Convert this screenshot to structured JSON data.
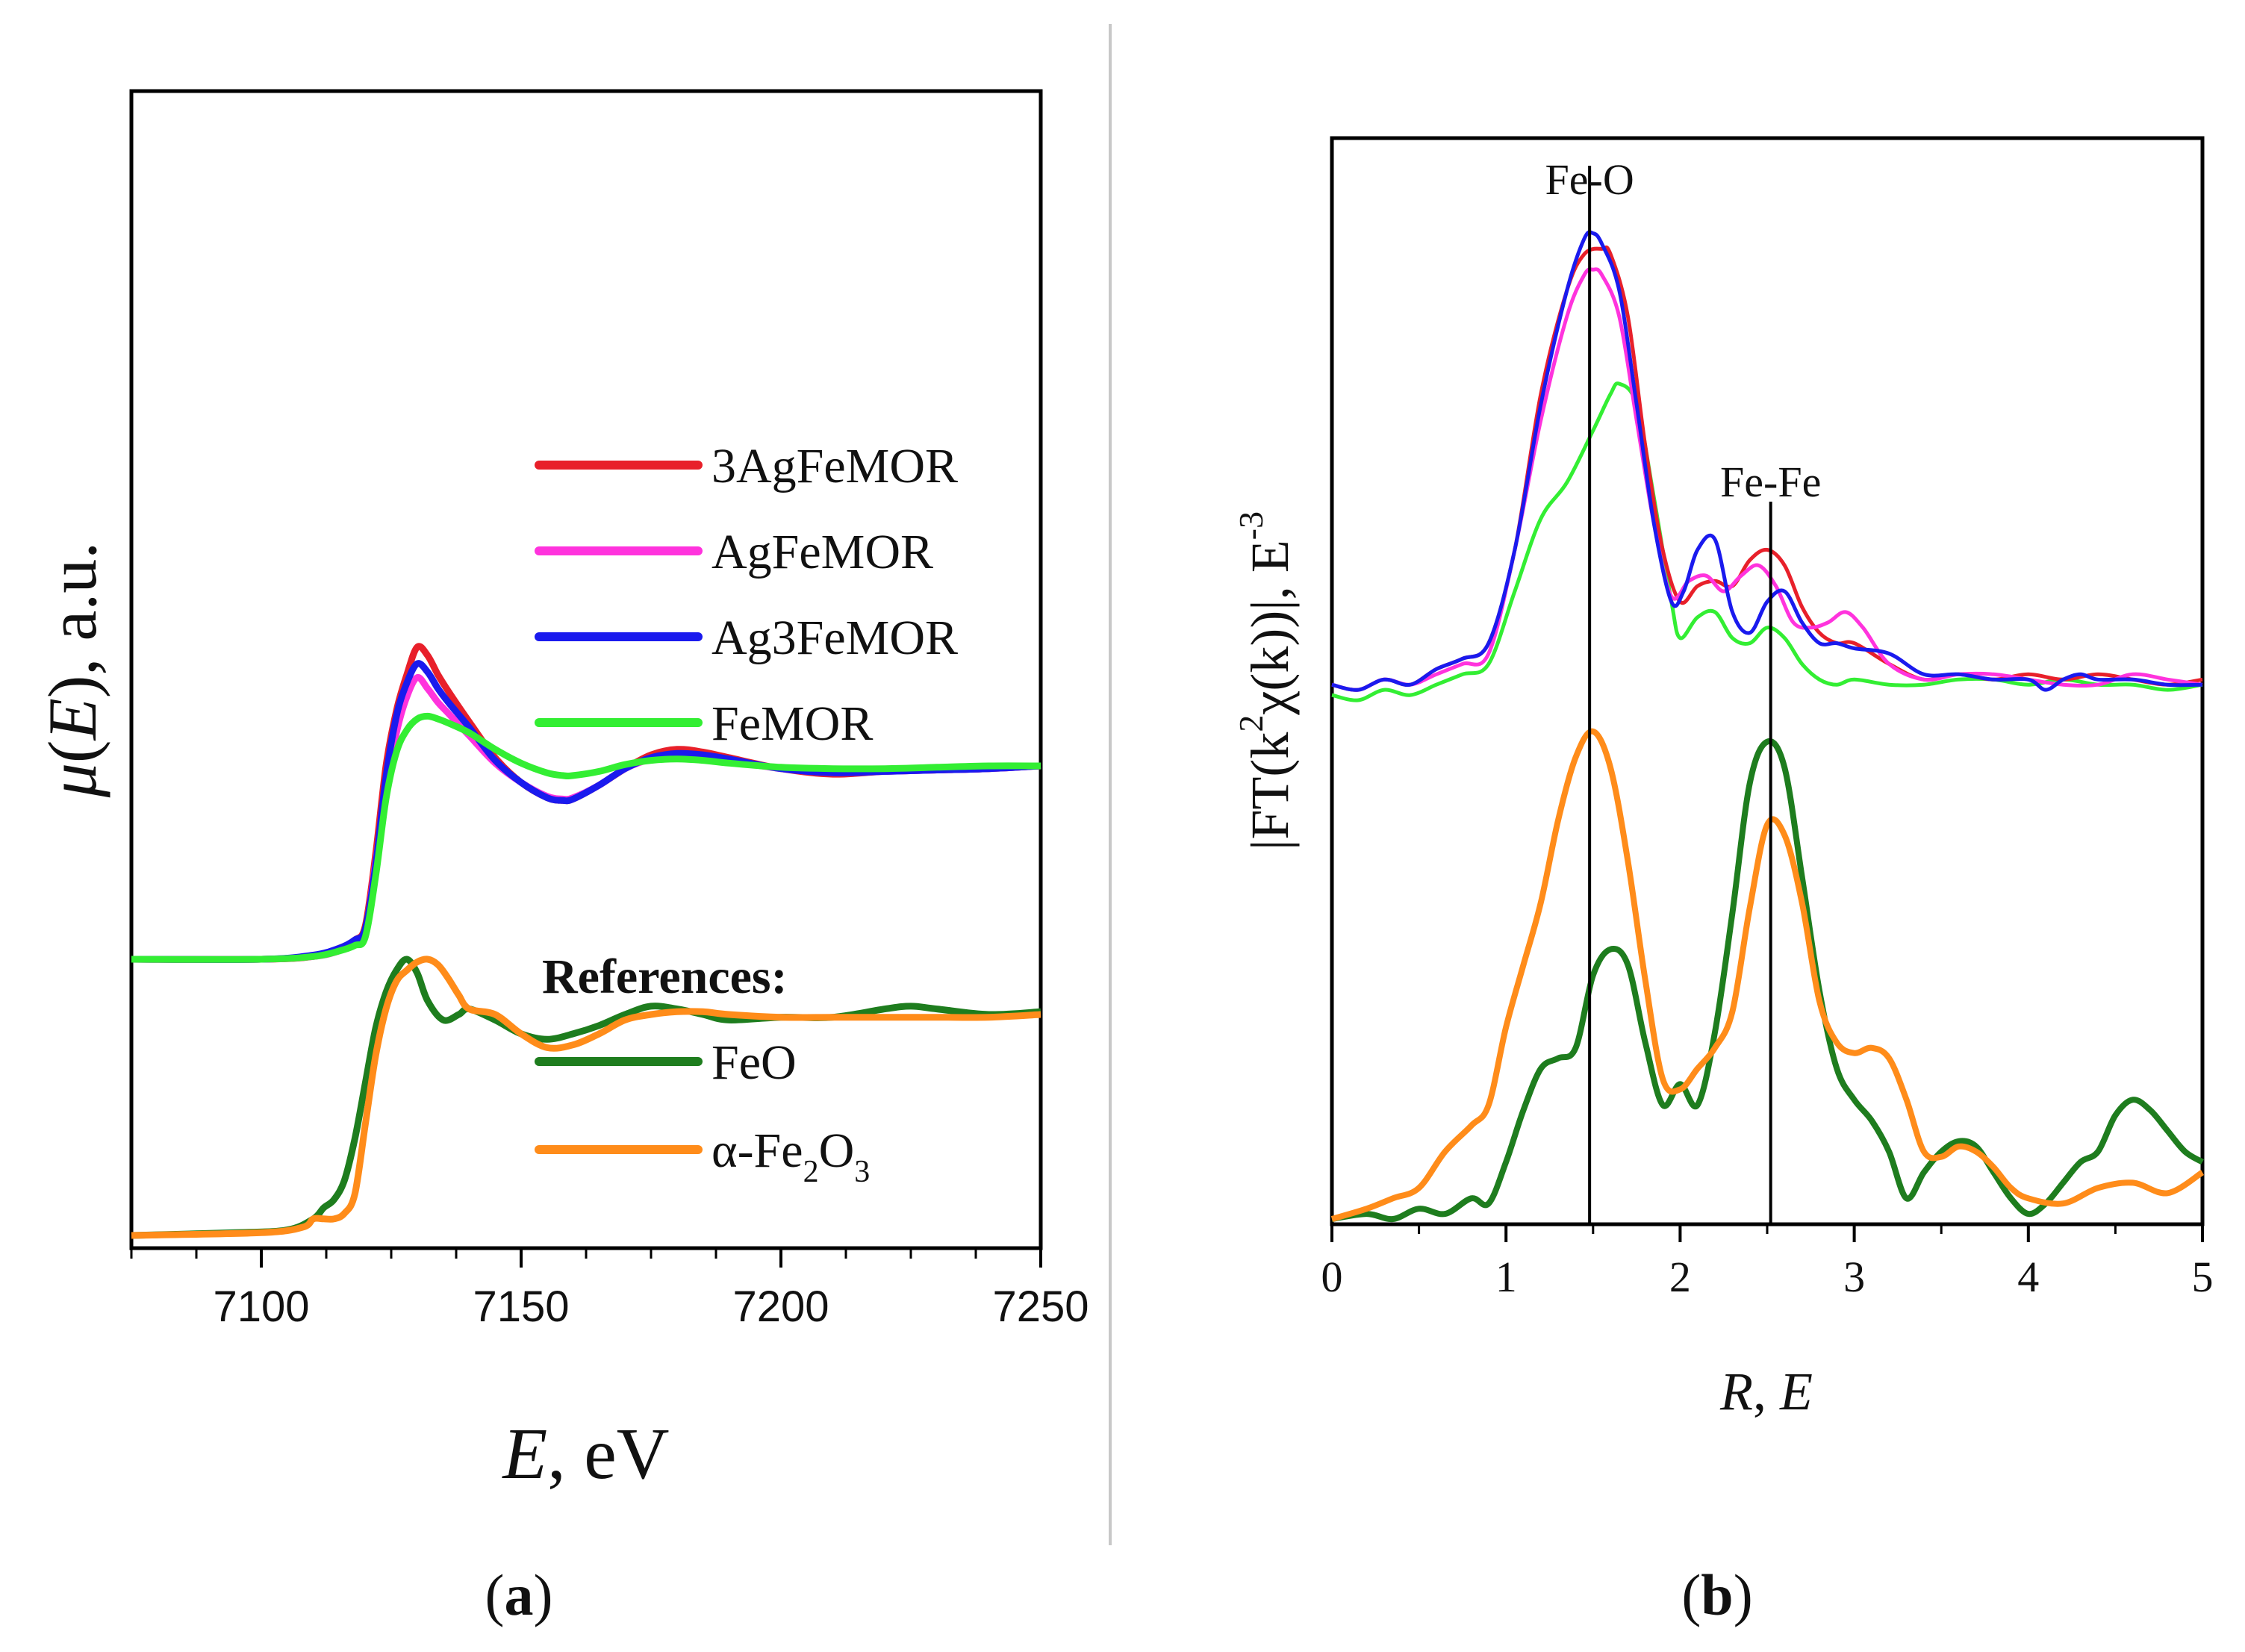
{
  "chart_data": [
    {
      "type": "line",
      "panel_label": "(a)",
      "panel_letter": "a",
      "ylabel_symbol": "μ",
      "ylabel_arg": "E",
      "ylabel": "μ(E), a.u.",
      "ylabel_suffix": ", a.u.",
      "xlabel_var": "E",
      "xlabel_unit": ", eV",
      "xlabel": "E, eV",
      "xlim": [
        7075,
        7250
      ],
      "ylim": [
        0,
        2.15
      ],
      "xticks": [
        7100,
        7150,
        7200,
        7250
      ],
      "legend_heading": "References:",
      "series": [
        {
          "name": "3AgFeMOR",
          "color": "#e8202a",
          "group": "samples",
          "x": [
            7075,
            7100,
            7110,
            7115,
            7118,
            7120,
            7122,
            7124,
            7126,
            7128,
            7130,
            7132,
            7134,
            7136,
            7140,
            7145,
            7150,
            7155,
            7158,
            7160,
            7165,
            7170,
            7175,
            7180,
            7185,
            7190,
            7200,
            7210,
            7220,
            7230,
            7240,
            7250
          ],
          "y": [
            1.0,
            1.0,
            1.01,
            1.04,
            1.07,
            1.12,
            1.38,
            1.7,
            1.9,
            2.03,
            2.13,
            2.1,
            2.03,
            1.97,
            1.86,
            1.73,
            1.64,
            1.585,
            1.575,
            1.58,
            1.63,
            1.69,
            1.74,
            1.76,
            1.75,
            1.73,
            1.69,
            1.67,
            1.68,
            1.685,
            1.69,
            1.7
          ]
        },
        {
          "name": "AgFeMOR",
          "color": "#ff33dd",
          "group": "samples",
          "x": [
            7075,
            7100,
            7110,
            7115,
            7118,
            7120,
            7122,
            7124,
            7126,
            7128,
            7130,
            7132,
            7134,
            7136,
            7140,
            7145,
            7150,
            7155,
            7158,
            7160,
            7165,
            7170,
            7175,
            7180,
            7185,
            7190,
            7200,
            7210,
            7220,
            7230,
            7240,
            7250
          ],
          "y": [
            1.0,
            1.0,
            1.01,
            1.03,
            1.06,
            1.1,
            1.35,
            1.62,
            1.82,
            1.95,
            2.02,
            1.98,
            1.93,
            1.89,
            1.81,
            1.71,
            1.64,
            1.59,
            1.58,
            1.585,
            1.63,
            1.69,
            1.725,
            1.74,
            1.735,
            1.72,
            1.69,
            1.675,
            1.68,
            1.685,
            1.69,
            1.7
          ]
        },
        {
          "name": "Ag3FeMOR",
          "color": "#1a1aee",
          "group": "samples",
          "x": [
            7075,
            7100,
            7110,
            7115,
            7118,
            7120,
            7122,
            7124,
            7126,
            7128,
            7130,
            7132,
            7134,
            7136,
            7140,
            7145,
            7150,
            7155,
            7158,
            7160,
            7165,
            7170,
            7175,
            7180,
            7185,
            7190,
            7200,
            7210,
            7220,
            7230,
            7240,
            7250
          ],
          "y": [
            1.0,
            1.0,
            1.015,
            1.04,
            1.07,
            1.11,
            1.34,
            1.66,
            1.88,
            2.0,
            2.07,
            2.04,
            1.98,
            1.93,
            1.84,
            1.72,
            1.64,
            1.585,
            1.575,
            1.58,
            1.63,
            1.69,
            1.73,
            1.745,
            1.74,
            1.725,
            1.69,
            1.675,
            1.68,
            1.685,
            1.69,
            1.7
          ]
        },
        {
          "name": "FeMOR",
          "color": "#33ee33",
          "group": "samples",
          "x": [
            7075,
            7100,
            7110,
            7115,
            7118,
            7120,
            7122,
            7124,
            7126,
            7128,
            7130,
            7132,
            7134,
            7136,
            7140,
            7145,
            7150,
            7155,
            7158,
            7160,
            7165,
            7170,
            7175,
            7180,
            7185,
            7190,
            7200,
            7210,
            7220,
            7230,
            7240,
            7250
          ],
          "y": [
            1.0,
            1.0,
            1.01,
            1.03,
            1.05,
            1.08,
            1.3,
            1.58,
            1.75,
            1.83,
            1.87,
            1.88,
            1.87,
            1.855,
            1.82,
            1.76,
            1.71,
            1.675,
            1.665,
            1.665,
            1.68,
            1.705,
            1.72,
            1.725,
            1.72,
            1.71,
            1.695,
            1.69,
            1.69,
            1.695,
            1.7,
            1.7
          ]
        },
        {
          "name": "FeO",
          "color": "#1e7d1e",
          "group": "references",
          "x": [
            7075,
            7095,
            7105,
            7110,
            7112,
            7114,
            7116,
            7118,
            7120,
            7122,
            7124,
            7126,
            7128,
            7130,
            7132,
            7135,
            7138,
            7140,
            7145,
            7150,
            7155,
            7160,
            7165,
            7170,
            7175,
            7180,
            7185,
            7190,
            7200,
            7210,
            7220,
            7225,
            7230,
            7240,
            7250
          ],
          "y": [
            0.0,
            0.01,
            0.02,
            0.06,
            0.1,
            0.13,
            0.2,
            0.35,
            0.55,
            0.75,
            0.88,
            0.96,
            1.0,
            0.95,
            0.85,
            0.78,
            0.8,
            0.82,
            0.78,
            0.73,
            0.71,
            0.73,
            0.76,
            0.8,
            0.83,
            0.82,
            0.8,
            0.78,
            0.79,
            0.79,
            0.82,
            0.83,
            0.82,
            0.8,
            0.81
          ]
        },
        {
          "name": "α-Fe2O3",
          "color": "#ff8c1a",
          "group": "references",
          "x": [
            7075,
            7100,
            7108,
            7110,
            7112,
            7114,
            7116,
            7118,
            7120,
            7122,
            7124,
            7126,
            7128,
            7130,
            7132,
            7134,
            7136,
            7138,
            7140,
            7145,
            7150,
            7155,
            7160,
            7165,
            7170,
            7175,
            7180,
            7185,
            7190,
            7200,
            7210,
            7220,
            7230,
            7240,
            7250
          ],
          "y": [
            0.0,
            0.01,
            0.03,
            0.06,
            0.06,
            0.06,
            0.08,
            0.15,
            0.4,
            0.65,
            0.82,
            0.92,
            0.96,
            0.99,
            1.0,
            0.98,
            0.93,
            0.87,
            0.82,
            0.8,
            0.73,
            0.68,
            0.69,
            0.73,
            0.78,
            0.8,
            0.81,
            0.81,
            0.8,
            0.79,
            0.79,
            0.79,
            0.79,
            0.79,
            0.8
          ]
        }
      ],
      "legend": {
        "samples": [
          "3AgFeMOR",
          "AgFeMOR",
          "Ag3FeMOR",
          "FeMOR"
        ],
        "references": [
          "FeO",
          "α-Fe2O3"
        ]
      }
    },
    {
      "type": "line",
      "panel_label": "(b)",
      "panel_letter": "b",
      "ylabel": "|FT(k2χ(k))|, E-3",
      "xlabel_var1": "R",
      "xlabel_sep": ", ",
      "xlabel_var2": "E",
      "xlabel": "R, E",
      "xlim": [
        0,
        5
      ],
      "ylim": [
        0,
        2.0
      ],
      "xticks": [
        0,
        1,
        2,
        3,
        4,
        5
      ],
      "annotations": [
        {
          "text": "Fe-O",
          "x": 1.48
        },
        {
          "text": "Fe-Fe",
          "x": 2.52
        }
      ],
      "series": [
        {
          "name": "3AgFeMOR",
          "color": "#e8202a",
          "x": [
            0,
            0.15,
            0.3,
            0.45,
            0.6,
            0.75,
            0.9,
            1.05,
            1.2,
            1.35,
            1.45,
            1.55,
            1.6,
            1.7,
            1.8,
            1.9,
            2.0,
            2.1,
            2.2,
            2.3,
            2.4,
            2.5,
            2.6,
            2.7,
            2.8,
            2.9,
            3.0,
            3.2,
            3.4,
            3.6,
            3.8,
            4.0,
            4.2,
            4.4,
            4.6,
            4.8,
            5.0
          ],
          "y": [
            1.04,
            1.03,
            1.05,
            1.04,
            1.07,
            1.09,
            1.12,
            1.3,
            1.6,
            1.8,
            1.87,
            1.88,
            1.87,
            1.75,
            1.5,
            1.3,
            1.2,
            1.23,
            1.24,
            1.23,
            1.28,
            1.3,
            1.27,
            1.19,
            1.14,
            1.12,
            1.12,
            1.08,
            1.05,
            1.06,
            1.05,
            1.06,
            1.05,
            1.06,
            1.05,
            1.04,
            1.05
          ]
        },
        {
          "name": "AgFeMOR",
          "color": "#ff33dd",
          "x": [
            0,
            0.15,
            0.3,
            0.45,
            0.6,
            0.75,
            0.9,
            1.05,
            1.2,
            1.35,
            1.45,
            1.5,
            1.55,
            1.65,
            1.75,
            1.85,
            1.95,
            2.05,
            2.15,
            2.25,
            2.35,
            2.45,
            2.55,
            2.65,
            2.75,
            2.85,
            2.95,
            3.05,
            3.2,
            3.4,
            3.6,
            3.8,
            4.0,
            4.2,
            4.4,
            4.6,
            4.8,
            5.0
          ],
          "y": [
            1.04,
            1.03,
            1.05,
            1.04,
            1.06,
            1.08,
            1.1,
            1.3,
            1.55,
            1.75,
            1.83,
            1.84,
            1.83,
            1.75,
            1.55,
            1.35,
            1.21,
            1.24,
            1.25,
            1.22,
            1.25,
            1.27,
            1.23,
            1.16,
            1.15,
            1.16,
            1.18,
            1.15,
            1.08,
            1.05,
            1.06,
            1.06,
            1.05,
            1.04,
            1.04,
            1.06,
            1.05,
            1.04
          ]
        },
        {
          "name": "Ag3FeMOR",
          "color": "#1a1aee",
          "x": [
            0,
            0.15,
            0.3,
            0.45,
            0.6,
            0.75,
            0.9,
            1.05,
            1.2,
            1.35,
            1.45,
            1.5,
            1.55,
            1.65,
            1.75,
            1.85,
            1.95,
            2.02,
            2.1,
            2.2,
            2.3,
            2.4,
            2.5,
            2.6,
            2.7,
            2.8,
            2.9,
            3.0,
            3.2,
            3.4,
            3.6,
            3.8,
            4.0,
            4.1,
            4.2,
            4.3,
            4.4,
            4.6,
            4.8,
            5.0
          ],
          "y": [
            1.04,
            1.03,
            1.05,
            1.04,
            1.07,
            1.09,
            1.12,
            1.3,
            1.58,
            1.8,
            1.9,
            1.91,
            1.89,
            1.8,
            1.58,
            1.35,
            1.2,
            1.22,
            1.3,
            1.32,
            1.18,
            1.14,
            1.2,
            1.22,
            1.16,
            1.12,
            1.12,
            1.11,
            1.1,
            1.06,
            1.06,
            1.05,
            1.05,
            1.03,
            1.05,
            1.06,
            1.05,
            1.05,
            1.04,
            1.04
          ]
        },
        {
          "name": "FeMOR",
          "color": "#33ee33",
          "x": [
            0,
            0.15,
            0.3,
            0.45,
            0.6,
            0.75,
            0.9,
            1.05,
            1.2,
            1.35,
            1.5,
            1.6,
            1.65,
            1.75,
            1.85,
            1.95,
            2.0,
            2.1,
            2.2,
            2.3,
            2.4,
            2.5,
            2.6,
            2.7,
            2.8,
            2.9,
            3.0,
            3.2,
            3.4,
            3.6,
            3.8,
            4.0,
            4.2,
            4.4,
            4.6,
            4.8,
            5.0
          ],
          "y": [
            1.02,
            1.01,
            1.03,
            1.02,
            1.04,
            1.06,
            1.08,
            1.22,
            1.36,
            1.43,
            1.53,
            1.6,
            1.62,
            1.58,
            1.4,
            1.2,
            1.13,
            1.17,
            1.18,
            1.13,
            1.12,
            1.15,
            1.13,
            1.08,
            1.05,
            1.04,
            1.05,
            1.04,
            1.04,
            1.05,
            1.05,
            1.04,
            1.05,
            1.04,
            1.04,
            1.03,
            1.04
          ]
        },
        {
          "name": "FeO",
          "color": "#1e7d1e",
          "x": [
            0,
            0.2,
            0.35,
            0.5,
            0.65,
            0.8,
            0.9,
            1.0,
            1.1,
            1.2,
            1.3,
            1.4,
            1.5,
            1.6,
            1.7,
            1.8,
            1.9,
            2.0,
            2.1,
            2.2,
            2.3,
            2.4,
            2.5,
            2.6,
            2.7,
            2.8,
            2.9,
            3.0,
            3.1,
            3.2,
            3.3,
            3.4,
            3.5,
            3.6,
            3.7,
            3.8,
            3.9,
            4.0,
            4.1,
            4.2,
            4.3,
            4.4,
            4.5,
            4.6,
            4.7,
            4.8,
            4.9,
            5.0
          ],
          "y": [
            0.01,
            0.02,
            0.01,
            0.03,
            0.02,
            0.05,
            0.04,
            0.12,
            0.22,
            0.3,
            0.32,
            0.34,
            0.48,
            0.53,
            0.5,
            0.35,
            0.23,
            0.27,
            0.23,
            0.37,
            0.6,
            0.85,
            0.93,
            0.88,
            0.67,
            0.45,
            0.3,
            0.24,
            0.2,
            0.14,
            0.05,
            0.1,
            0.14,
            0.16,
            0.15,
            0.1,
            0.05,
            0.02,
            0.04,
            0.08,
            0.12,
            0.14,
            0.21,
            0.24,
            0.22,
            0.18,
            0.14,
            0.12
          ]
        },
        {
          "name": "α-Fe2O3",
          "color": "#ff8c1a",
          "x": [
            0,
            0.2,
            0.35,
            0.5,
            0.65,
            0.8,
            0.9,
            1.0,
            1.1,
            1.2,
            1.3,
            1.4,
            1.5,
            1.6,
            1.7,
            1.8,
            1.9,
            2.0,
            2.1,
            2.2,
            2.3,
            2.4,
            2.5,
            2.6,
            2.7,
            2.8,
            2.9,
            3.0,
            3.1,
            3.2,
            3.3,
            3.4,
            3.5,
            3.6,
            3.7,
            3.8,
            3.9,
            4.0,
            4.2,
            4.4,
            4.6,
            4.8,
            5.0
          ],
          "y": [
            0.01,
            0.03,
            0.05,
            0.07,
            0.14,
            0.19,
            0.23,
            0.38,
            0.5,
            0.62,
            0.78,
            0.9,
            0.95,
            0.88,
            0.7,
            0.47,
            0.28,
            0.26,
            0.3,
            0.34,
            0.41,
            0.61,
            0.77,
            0.75,
            0.62,
            0.43,
            0.35,
            0.33,
            0.34,
            0.32,
            0.24,
            0.14,
            0.13,
            0.15,
            0.14,
            0.11,
            0.07,
            0.05,
            0.04,
            0.07,
            0.08,
            0.06,
            0.1
          ]
        }
      ]
    }
  ]
}
